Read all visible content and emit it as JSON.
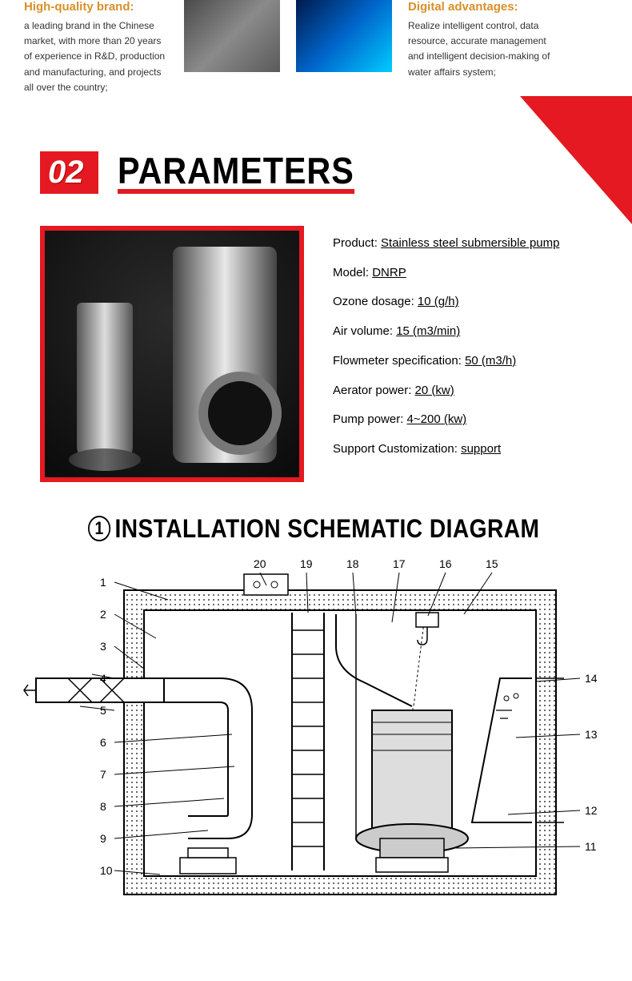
{
  "features": {
    "brand": {
      "title": "High-quality brand:",
      "text": "a leading brand in the Chinese market, with more than 20 years of experience in R&D, production and manufacturing, and projects all over the country;"
    },
    "digital": {
      "title": "Digital advantages:",
      "text": "Realize intelligent control, data resource, accurate management and intelligent decision-making of water affairs system;"
    }
  },
  "section": {
    "number": "02",
    "title": "PARAMETERS"
  },
  "specs": [
    {
      "label": "Product:",
      "val": "Stainless steel submersible pump"
    },
    {
      "label": "Model:",
      "val": "DNRP"
    },
    {
      "label": "Ozone dosage:",
      "val": "10 (g/h)"
    },
    {
      "label": "Air volume:",
      "val": "15 (m3/min)"
    },
    {
      "label": "Flowmeter specification:",
      "val": "50 (m3/h)"
    },
    {
      "label": "Aerator power:",
      "val": "20 (kw)"
    },
    {
      "label": "Pump power:",
      "val": "4~200 (kw)"
    },
    {
      "label": "Support Customization:",
      "val": "support"
    }
  ],
  "schematic": {
    "circ": "1",
    "title": "INSTALLATION SCHEMATIC DIAGRAM",
    "labels_left": [
      "1",
      "2",
      "3",
      "4",
      "5",
      "6",
      "7",
      "8",
      "9",
      "10"
    ],
    "labels_top": [
      "20",
      "19",
      "18",
      "17",
      "16",
      "15"
    ],
    "labels_right": [
      "14",
      "13",
      "12",
      "11"
    ]
  },
  "colors": {
    "accent_red": "#e41921",
    "accent_orange": "#d89028"
  }
}
